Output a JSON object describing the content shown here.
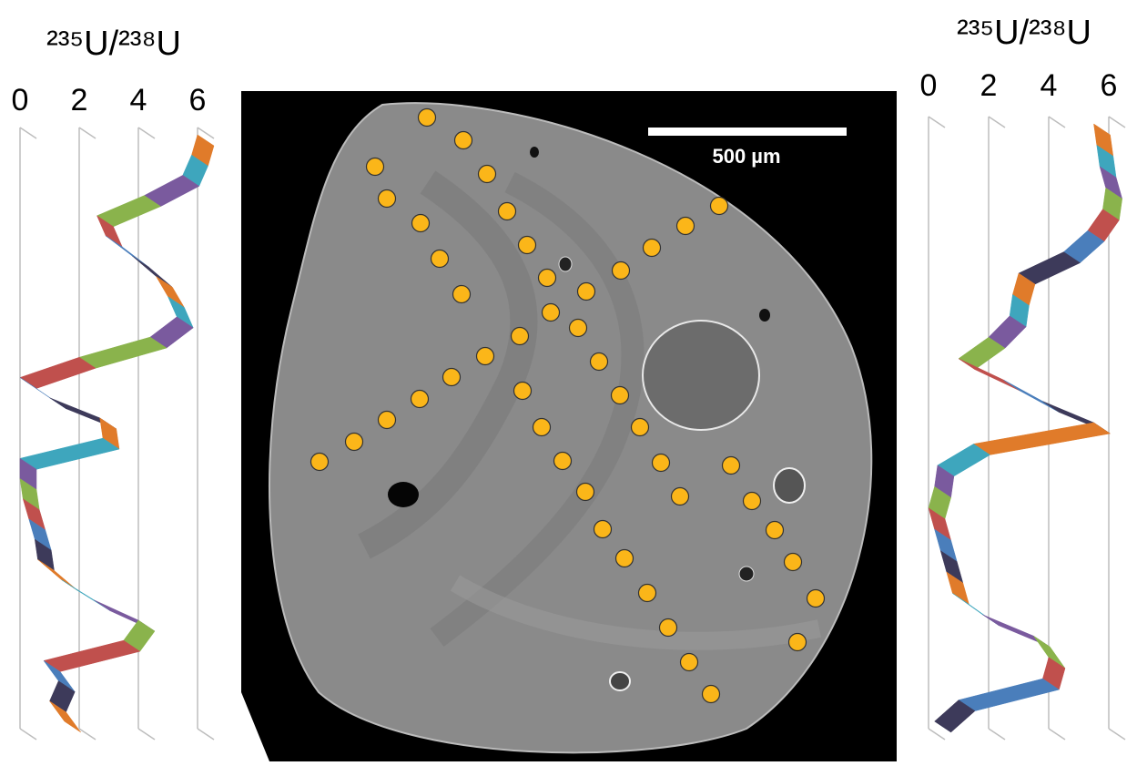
{
  "chart_data": [
    {
      "type": "ribbon",
      "title": "²³⁵U/²³⁸U",
      "xlim": [
        0,
        6
      ],
      "xticks": [
        0,
        2,
        4,
        6
      ],
      "grid": true,
      "series": [
        {
          "colors": [
            "#e07b2a",
            "#3ea6bd",
            "#7a5a9e",
            "#8ab34c",
            "#c0504d",
            "#4a7ebb",
            "#3d3a5a"
          ],
          "values": [
            6.0,
            5.8,
            5.5,
            4.2,
            2.6,
            2.9,
            3.8,
            4.6,
            5.0,
            5.3,
            4.4,
            2.0,
            0.0,
            1.0,
            2.7,
            2.8,
            0.0,
            0.0,
            0.1,
            0.3,
            0.5,
            0.6,
            1.4,
            2.5,
            4.0,
            3.5,
            0.8,
            1.3,
            1.0,
            1.5
          ]
        }
      ]
    },
    {
      "type": "ribbon",
      "title": "²³⁵U/²³⁸U",
      "xlim": [
        0,
        6
      ],
      "xticks": [
        0,
        2,
        4,
        6
      ],
      "grid": true,
      "series": [
        {
          "colors": [
            "#e07b2a",
            "#3ea6bd",
            "#7a5a9e",
            "#8ab34c",
            "#c0504d",
            "#4a7ebb",
            "#3d3a5a"
          ],
          "values": [
            5.5,
            5.6,
            5.7,
            5.9,
            5.8,
            5.3,
            4.5,
            3.0,
            2.8,
            2.7,
            2.0,
            1.0,
            2.5,
            3.8,
            5.5,
            1.5,
            0.3,
            0.2,
            0.0,
            0.2,
            0.4,
            0.6,
            0.8,
            1.8,
            3.5,
            4.0,
            3.8,
            1.0,
            0.2
          ]
        }
      ]
    }
  ],
  "image": {
    "scale_bar_label": "500 µm"
  }
}
